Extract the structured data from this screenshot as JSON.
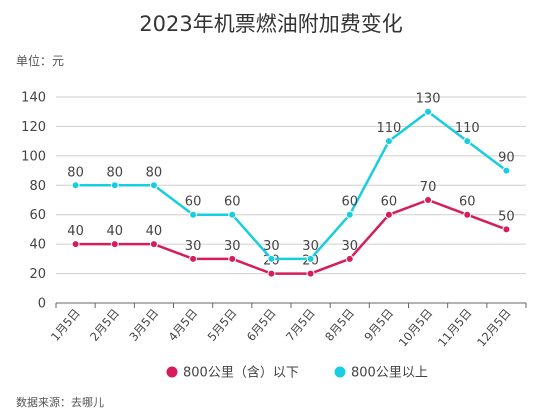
{
  "chart_data": {
    "type": "line",
    "title": "2023年机票燃油附加费变化",
    "unit_label": "单位：元",
    "source": "数据来源：去哪儿",
    "categories": [
      "1月5日",
      "2月5日",
      "3月5日",
      "4月5日",
      "5月5日",
      "6月5日",
      "7月5日",
      "8月5日",
      "9月5日",
      "10月5日",
      "11月5日",
      "12月5日"
    ],
    "ylim": [
      0,
      140
    ],
    "yticks": [
      0,
      20,
      40,
      60,
      80,
      100,
      120,
      140
    ],
    "grid": true,
    "legend_position": "bottom",
    "series": [
      {
        "name": "800公里（含）以下",
        "color": "#d81b5a",
        "values": [
          40,
          40,
          40,
          30,
          30,
          20,
          20,
          30,
          60,
          70,
          60,
          50
        ]
      },
      {
        "name": "800公里以上",
        "color": "#17cde0",
        "values": [
          80,
          80,
          80,
          60,
          60,
          30,
          30,
          60,
          110,
          130,
          110,
          90
        ]
      }
    ]
  }
}
